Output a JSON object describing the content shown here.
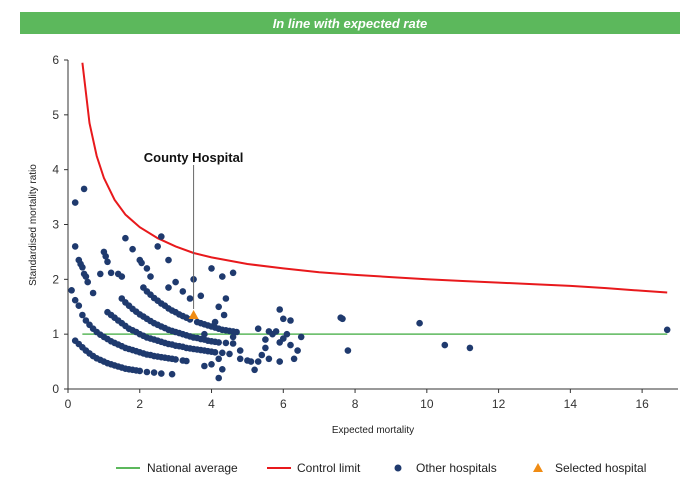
{
  "banner": {
    "title": "In line with expected rate",
    "color": "#5cb85c"
  },
  "chart_data": {
    "type": "scatter",
    "title": "",
    "xlabel": "Expected mortality",
    "ylabel": "Standardised mortality ratio",
    "xlim": [
      0,
      17
    ],
    "ylim": [
      0,
      6
    ],
    "xticks": [
      "0",
      "2",
      "4",
      "6",
      "8",
      "10",
      "12",
      "14",
      "16"
    ],
    "yticks": [
      "0",
      "1",
      "2",
      "3",
      "4",
      "5",
      "6"
    ],
    "grid": false,
    "legend_position": "bottom",
    "national_average": {
      "name": "National average",
      "value": 1,
      "x_range": [
        0.4,
        16.7
      ],
      "color": "#5cb85c"
    },
    "control_limit": {
      "name": "Control limit",
      "color": "#e8191c",
      "points": [
        [
          0.4,
          5.95
        ],
        [
          0.6,
          4.85
        ],
        [
          0.8,
          4.25
        ],
        [
          1.0,
          3.85
        ],
        [
          1.3,
          3.45
        ],
        [
          1.6,
          3.18
        ],
        [
          2.0,
          2.95
        ],
        [
          2.5,
          2.75
        ],
        [
          3.0,
          2.6
        ],
        [
          3.5,
          2.48
        ],
        [
          4.0,
          2.4
        ],
        [
          5.0,
          2.28
        ],
        [
          6.0,
          2.2
        ],
        [
          7.0,
          2.13
        ],
        [
          8.0,
          2.08
        ],
        [
          9.0,
          2.04
        ],
        [
          10.0,
          2.0
        ],
        [
          11.0,
          1.97
        ],
        [
          12.0,
          1.94
        ],
        [
          13.0,
          1.91
        ],
        [
          14.0,
          1.88
        ],
        [
          15.0,
          1.84
        ],
        [
          16.0,
          1.79
        ],
        [
          16.7,
          1.76
        ]
      ]
    },
    "other_hospitals": {
      "name": "Other hospitals",
      "color": "#1f3a6e",
      "points": [
        [
          0.2,
          0.88
        ],
        [
          0.3,
          0.82
        ],
        [
          0.4,
          0.76
        ],
        [
          0.5,
          0.7
        ],
        [
          0.6,
          0.65
        ],
        [
          0.7,
          0.6
        ],
        [
          0.8,
          0.56
        ],
        [
          0.9,
          0.53
        ],
        [
          1.0,
          0.5
        ],
        [
          1.1,
          0.47
        ],
        [
          1.2,
          0.45
        ],
        [
          1.3,
          0.43
        ],
        [
          1.4,
          0.41
        ],
        [
          1.5,
          0.39
        ],
        [
          1.6,
          0.37
        ],
        [
          1.7,
          0.36
        ],
        [
          1.8,
          0.35
        ],
        [
          1.9,
          0.34
        ],
        [
          2.0,
          0.33
        ],
        [
          2.2,
          0.31
        ],
        [
          2.4,
          0.3
        ],
        [
          2.6,
          0.28
        ],
        [
          2.9,
          0.27
        ],
        [
          0.4,
          1.35
        ],
        [
          0.5,
          1.25
        ],
        [
          0.6,
          1.17
        ],
        [
          0.7,
          1.1
        ],
        [
          0.8,
          1.04
        ],
        [
          0.9,
          0.99
        ],
        [
          1.0,
          0.95
        ],
        [
          1.1,
          0.91
        ],
        [
          1.2,
          0.87
        ],
        [
          1.3,
          0.84
        ],
        [
          1.4,
          0.81
        ],
        [
          1.5,
          0.78
        ],
        [
          1.6,
          0.75
        ],
        [
          1.7,
          0.73
        ],
        [
          1.8,
          0.71
        ],
        [
          1.9,
          0.69
        ],
        [
          2.0,
          0.67
        ],
        [
          2.1,
          0.65
        ],
        [
          2.2,
          0.63
        ],
        [
          2.3,
          0.62
        ],
        [
          2.4,
          0.6
        ],
        [
          2.5,
          0.59
        ],
        [
          2.6,
          0.58
        ],
        [
          2.7,
          0.57
        ],
        [
          2.8,
          0.56
        ],
        [
          2.9,
          0.55
        ],
        [
          3.0,
          0.54
        ],
        [
          3.2,
          0.52
        ],
        [
          3.3,
          0.51
        ],
        [
          1.1,
          1.4
        ],
        [
          1.2,
          1.35
        ],
        [
          1.3,
          1.3
        ],
        [
          1.4,
          1.25
        ],
        [
          1.5,
          1.2
        ],
        [
          1.6,
          1.15
        ],
        [
          1.7,
          1.1
        ],
        [
          1.8,
          1.07
        ],
        [
          1.9,
          1.04
        ],
        [
          2.0,
          1.0
        ],
        [
          2.1,
          0.97
        ],
        [
          2.2,
          0.94
        ],
        [
          2.3,
          0.92
        ],
        [
          2.4,
          0.9
        ],
        [
          2.5,
          0.88
        ],
        [
          2.6,
          0.86
        ],
        [
          2.7,
          0.84
        ],
        [
          2.8,
          0.82
        ],
        [
          2.9,
          0.81
        ],
        [
          3.0,
          0.79
        ],
        [
          3.1,
          0.78
        ],
        [
          3.2,
          0.77
        ],
        [
          3.3,
          0.75
        ],
        [
          3.4,
          0.74
        ],
        [
          3.5,
          0.73
        ],
        [
          3.6,
          0.72
        ],
        [
          3.7,
          0.71
        ],
        [
          3.8,
          0.7
        ],
        [
          3.9,
          0.69
        ],
        [
          4.0,
          0.68
        ],
        [
          4.1,
          0.67
        ],
        [
          4.3,
          0.66
        ],
        [
          4.5,
          0.64
        ],
        [
          1.5,
          1.65
        ],
        [
          1.6,
          1.58
        ],
        [
          1.7,
          1.52
        ],
        [
          1.8,
          1.46
        ],
        [
          1.9,
          1.41
        ],
        [
          2.0,
          1.36
        ],
        [
          2.1,
          1.32
        ],
        [
          2.2,
          1.28
        ],
        [
          2.3,
          1.24
        ],
        [
          2.4,
          1.2
        ],
        [
          2.5,
          1.17
        ],
        [
          2.6,
          1.14
        ],
        [
          2.7,
          1.11
        ],
        [
          2.8,
          1.08
        ],
        [
          2.9,
          1.06
        ],
        [
          3.0,
          1.04
        ],
        [
          3.1,
          1.02
        ],
        [
          3.2,
          1.0
        ],
        [
          3.3,
          0.98
        ],
        [
          3.4,
          0.96
        ],
        [
          3.5,
          0.94
        ],
        [
          3.6,
          0.93
        ],
        [
          3.7,
          0.91
        ],
        [
          3.8,
          0.9
        ],
        [
          3.9,
          0.88
        ],
        [
          4.0,
          0.87
        ],
        [
          4.1,
          0.86
        ],
        [
          4.2,
          0.85
        ],
        [
          4.4,
          0.84
        ],
        [
          4.6,
          0.83
        ],
        [
          2.1,
          1.85
        ],
        [
          2.2,
          1.78
        ],
        [
          2.3,
          1.72
        ],
        [
          2.4,
          1.66
        ],
        [
          2.5,
          1.61
        ],
        [
          2.6,
          1.56
        ],
        [
          2.7,
          1.52
        ],
        [
          2.8,
          1.47
        ],
        [
          2.9,
          1.43
        ],
        [
          3.0,
          1.4
        ],
        [
          3.1,
          1.36
        ],
        [
          3.2,
          1.33
        ],
        [
          3.3,
          1.3
        ],
        [
          3.4,
          1.27
        ],
        [
          3.6,
          1.22
        ],
        [
          3.7,
          1.2
        ],
        [
          3.8,
          1.18
        ],
        [
          3.9,
          1.16
        ],
        [
          4.0,
          1.14
        ],
        [
          4.1,
          1.12
        ],
        [
          4.2,
          1.1
        ],
        [
          4.3,
          1.08
        ],
        [
          4.4,
          1.07
        ],
        [
          4.5,
          1.06
        ],
        [
          4.6,
          1.05
        ],
        [
          4.7,
          1.04
        ],
        [
          0.1,
          1.8
        ],
        [
          0.2,
          2.6
        ],
        [
          0.3,
          2.35
        ],
        [
          0.35,
          2.28
        ],
        [
          0.4,
          2.22
        ],
        [
          0.45,
          2.1
        ],
        [
          0.5,
          2.05
        ],
        [
          0.55,
          1.95
        ],
        [
          0.2,
          1.62
        ],
        [
          0.3,
          1.52
        ],
        [
          0.7,
          1.75
        ],
        [
          0.9,
          2.1
        ],
        [
          1.0,
          2.5
        ],
        [
          1.05,
          2.42
        ],
        [
          1.1,
          2.32
        ],
        [
          1.2,
          2.12
        ],
        [
          1.4,
          2.1
        ],
        [
          1.5,
          2.05
        ],
        [
          1.6,
          2.75
        ],
        [
          1.8,
          2.55
        ],
        [
          2.0,
          2.35
        ],
        [
          2.05,
          2.3
        ],
        [
          2.2,
          2.2
        ],
        [
          2.3,
          2.05
        ],
        [
          2.5,
          2.6
        ],
        [
          2.6,
          2.78
        ],
        [
          2.8,
          2.35
        ],
        [
          3.0,
          1.95
        ],
        [
          3.2,
          1.78
        ],
        [
          3.4,
          1.65
        ],
        [
          3.5,
          2.0
        ],
        [
          3.7,
          1.7
        ],
        [
          0.2,
          3.4
        ],
        [
          0.45,
          3.65
        ],
        [
          2.8,
          1.85
        ],
        [
          4.0,
          2.2
        ],
        [
          4.3,
          2.05
        ],
        [
          4.6,
          2.12
        ],
        [
          4.4,
          1.65
        ],
        [
          4.2,
          1.5
        ],
        [
          4.35,
          1.35
        ],
        [
          4.1,
          1.22
        ],
        [
          4.2,
          0.55
        ],
        [
          4.0,
          0.45
        ],
        [
          3.8,
          0.42
        ],
        [
          4.3,
          0.36
        ],
        [
          4.2,
          0.2
        ],
        [
          3.8,
          1.0
        ],
        [
          4.6,
          0.95
        ],
        [
          4.8,
          0.7
        ],
        [
          4.8,
          0.55
        ],
        [
          5.0,
          0.52
        ],
        [
          5.1,
          0.5
        ],
        [
          5.2,
          0.35
        ],
        [
          5.3,
          0.5
        ],
        [
          5.4,
          0.62
        ],
        [
          5.5,
          0.75
        ],
        [
          5.5,
          0.9
        ],
        [
          5.3,
          1.1
        ],
        [
          5.6,
          1.05
        ],
        [
          5.7,
          1.0
        ],
        [
          5.8,
          1.05
        ],
        [
          5.9,
          1.45
        ],
        [
          5.9,
          0.85
        ],
        [
          6.0,
          1.28
        ],
        [
          6.0,
          0.92
        ],
        [
          6.1,
          1.0
        ],
        [
          6.2,
          1.25
        ],
        [
          6.3,
          0.55
        ],
        [
          6.4,
          0.7
        ],
        [
          6.5,
          0.95
        ],
        [
          5.6,
          0.55
        ],
        [
          5.9,
          0.5
        ],
        [
          6.2,
          0.8
        ],
        [
          7.6,
          1.3
        ],
        [
          7.65,
          1.28
        ],
        [
          7.8,
          0.7
        ],
        [
          9.8,
          1.2
        ],
        [
          10.5,
          0.8
        ],
        [
          11.2,
          0.75
        ],
        [
          16.7,
          1.08
        ]
      ]
    },
    "selected_hospital": {
      "name": "Selected hospital",
      "label": "County Hospital",
      "color": "#f08c14",
      "x": 3.5,
      "y": 1.35
    }
  }
}
